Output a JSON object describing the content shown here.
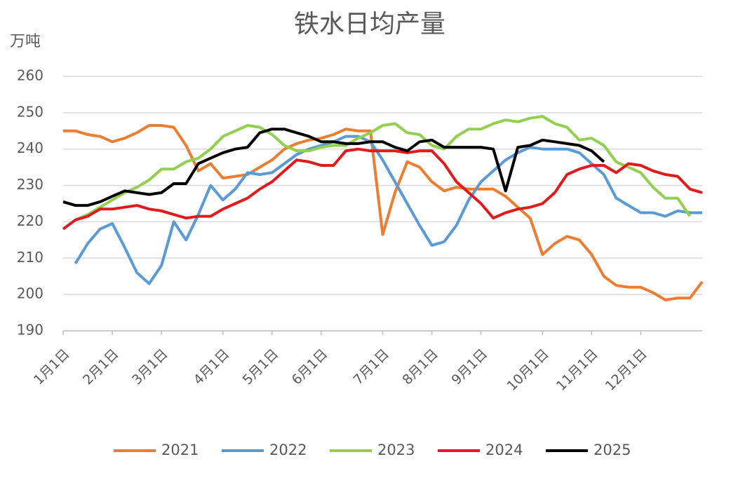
{
  "chart_data": {
    "type": "line",
    "title": "铁水日均产量",
    "y_label": "万吨",
    "categories": [
      "1月1日",
      null,
      null,
      null,
      "2月1日",
      null,
      null,
      null,
      "3月1日",
      null,
      null,
      null,
      null,
      "4月1日",
      null,
      null,
      null,
      "5月1日",
      null,
      null,
      null,
      "6月1日",
      null,
      null,
      null,
      null,
      "7月1日",
      null,
      null,
      null,
      "8月1日",
      null,
      null,
      null,
      "9月1日",
      null,
      null,
      null,
      null,
      "10月1日",
      null,
      null,
      null,
      "11月1日",
      null,
      null,
      null,
      "12月1日",
      null,
      null,
      null,
      null,
      null
    ],
    "ylim": [
      190,
      260
    ],
    "yticks": [
      190,
      200,
      210,
      220,
      230,
      240,
      250,
      260
    ],
    "grid": true,
    "legend": "bottom",
    "series": [
      {
        "name": "2021",
        "color": "#ed7d31",
        "values": [
          245,
          245,
          244,
          243.5,
          242,
          243,
          244.5,
          246.5,
          246.5,
          246,
          241,
          234,
          236,
          232,
          232.5,
          233,
          235,
          237,
          240,
          241.5,
          242.5,
          243,
          244,
          245.5,
          245,
          245,
          216.5,
          228,
          236.5,
          235,
          231,
          228.5,
          229.5,
          229,
          229,
          229,
          227,
          224,
          221,
          211,
          214,
          216,
          215,
          211,
          205,
          202.5,
          202,
          202,
          200.5,
          198.5,
          199,
          199,
          203.5
        ]
      },
      {
        "name": "2022",
        "color": "#5b9bd5",
        "values": [
          null,
          208.5,
          214,
          218,
          219.5,
          213,
          206,
          203,
          208,
          220,
          215,
          222,
          230,
          226,
          229,
          233.5,
          233,
          233.5,
          236,
          238.5,
          240,
          241,
          242,
          243.5,
          243.5,
          242,
          237,
          231,
          225,
          219,
          213.5,
          214.5,
          219,
          226,
          231,
          234,
          237,
          239,
          240.5,
          240,
          240,
          240,
          239,
          236,
          233,
          226.5,
          224.5,
          222.5,
          222.5,
          221.5,
          223,
          222.5,
          222.5
        ]
      },
      {
        "name": "2023",
        "color": "#92d050",
        "values": [
          null,
          220.5,
          222,
          224,
          226,
          228,
          229.5,
          231.5,
          234.5,
          234.5,
          236.5,
          237.5,
          240,
          243.5,
          245,
          246.5,
          246,
          244,
          241,
          239.5,
          239.5,
          240.5,
          241,
          241,
          243,
          244.5,
          246.5,
          247,
          244.5,
          244,
          241,
          240,
          243.5,
          245.5,
          245.5,
          247,
          248,
          247.5,
          248.5,
          249,
          247,
          246,
          242.5,
          243,
          241,
          236.5,
          235,
          233.5,
          229.5,
          226.5,
          226.5,
          221.5,
          null
        ]
      },
      {
        "name": "2024",
        "color": "#e31a1c",
        "values": [
          218,
          220.5,
          221.5,
          223.5,
          223.5,
          224,
          224.5,
          223.5,
          223,
          222,
          221,
          221.5,
          221.5,
          223.5,
          225,
          226.5,
          229,
          231,
          234,
          237,
          236.5,
          235.5,
          235.5,
          239.5,
          240,
          239.5,
          239.5,
          239.5,
          239,
          239.5,
          239.5,
          236,
          231,
          228,
          225,
          221,
          222.5,
          223.5,
          224,
          225,
          228,
          233,
          234.5,
          235.5,
          235.5,
          233.5,
          236,
          235.5,
          234,
          233,
          232.5,
          229,
          228
        ]
      },
      {
        "name": "2025",
        "color": "#000000",
        "values": [
          225.5,
          224.5,
          224.5,
          225.5,
          227,
          228.5,
          228,
          227.5,
          228,
          230.5,
          230.5,
          236,
          237.5,
          239,
          240,
          240.5,
          244.5,
          245.5,
          245.5,
          244.5,
          243.5,
          242,
          242,
          241.5,
          241.5,
          242,
          242,
          240.5,
          239.5,
          242,
          242.5,
          240.5,
          240.5,
          240.5,
          240.5,
          240,
          228.5,
          240.5,
          241,
          242.5,
          242,
          241.5,
          241,
          239.5,
          236.5,
          null,
          null,
          null,
          null,
          null,
          null,
          null,
          null
        ]
      }
    ]
  }
}
